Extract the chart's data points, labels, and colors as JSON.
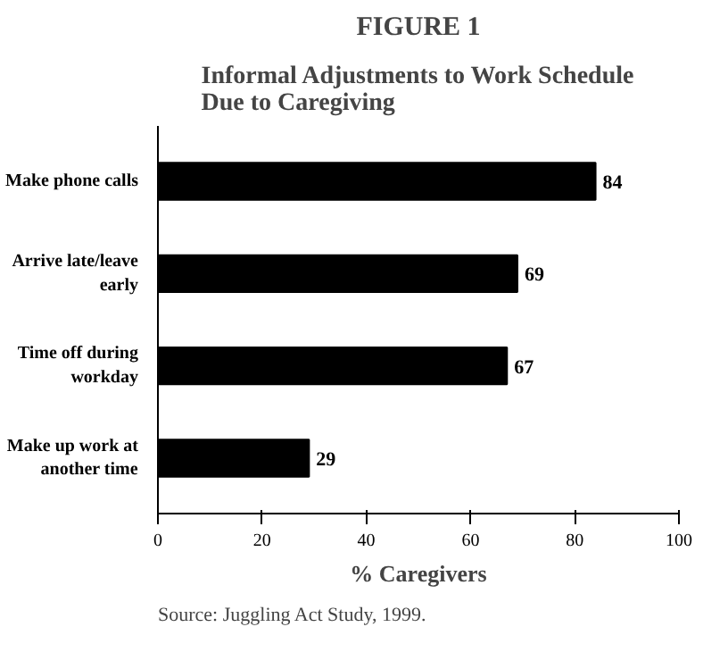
{
  "chart_data": {
    "type": "bar",
    "orientation": "horizontal",
    "title": "FIGURE 1",
    "subtitle": "Informal Adjustments to Work Schedule Due to Caregiving",
    "categories": [
      "Make phone calls",
      "Arrive late/leave early",
      "Time off during workday",
      "Make up work at another time"
    ],
    "values": [
      84,
      69,
      67,
      29
    ],
    "color": "#000000",
    "data_labels": true,
    "xlim": [
      0,
      100
    ],
    "xticks": [
      0,
      20,
      40,
      60,
      80,
      100
    ],
    "grid": false,
    "xlabel": "% Caregivers",
    "annotations": [
      "Source: Juggling Act Study, 1999."
    ]
  }
}
